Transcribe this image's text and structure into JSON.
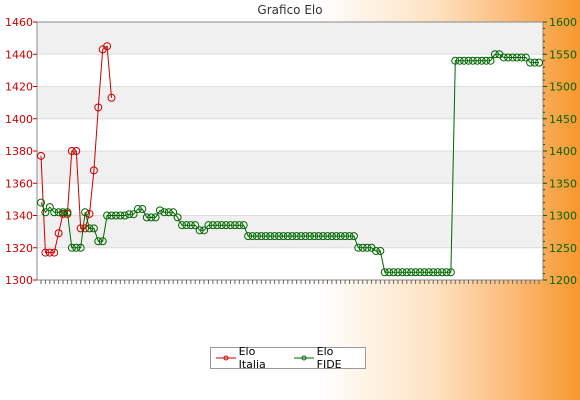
{
  "chart_data": {
    "type": "line",
    "title": "Grafico Elo",
    "left_axis": {
      "ticks": [
        1300,
        1320,
        1340,
        1360,
        1380,
        1400,
        1420,
        1440,
        1460
      ],
      "ylim": [
        1300,
        1460
      ],
      "color": "#cc0000"
    },
    "right_axis": {
      "ticks": [
        1200,
        1250,
        1300,
        1350,
        1400,
        1450,
        1500,
        1550,
        1600
      ],
      "ylim": [
        1200,
        1600
      ],
      "color": "#006600"
    },
    "grid": "horizontal bands",
    "legend_position": "bottom",
    "series": [
      {
        "name": "Elo Italia",
        "axis": "left",
        "color": "#cc0000",
        "values": [
          1377,
          1317,
          1317,
          1317,
          1329,
          1341,
          1341,
          1380,
          1380,
          1332,
          1332,
          1341,
          1368,
          1407,
          1443,
          1445,
          1413
        ]
      },
      {
        "name": "Elo FIDE",
        "axis": "right",
        "color": "#006600",
        "values": [
          1320,
          1305,
          1313,
          1305,
          1305,
          1305,
          1305,
          1250,
          1250,
          1250,
          1305,
          1280,
          1280,
          1260,
          1260,
          1300,
          1300,
          1300,
          1300,
          1300,
          1302,
          1302,
          1310,
          1310,
          1297,
          1297,
          1297,
          1308,
          1305,
          1305,
          1305,
          1297,
          1285,
          1285,
          1285,
          1285,
          1277,
          1277,
          1285,
          1285,
          1285,
          1285,
          1285,
          1285,
          1285,
          1285,
          1285,
          1268,
          1268,
          1268,
          1268,
          1268,
          1268,
          1268,
          1268,
          1268,
          1268,
          1268,
          1268,
          1268,
          1268,
          1268,
          1268,
          1268,
          1268,
          1268,
          1268,
          1268,
          1268,
          1268,
          1268,
          1268,
          1250,
          1250,
          1250,
          1250,
          1245,
          1245,
          1212,
          1212,
          1212,
          1212,
          1212,
          1212,
          1212,
          1212,
          1212,
          1212,
          1212,
          1212,
          1212,
          1212,
          1212,
          1212,
          1540,
          1540,
          1540,
          1540,
          1540,
          1540,
          1540,
          1540,
          1540,
          1550,
          1550,
          1545,
          1545,
          1545,
          1545,
          1545,
          1545,
          1537,
          1537,
          1537
        ]
      }
    ]
  }
}
